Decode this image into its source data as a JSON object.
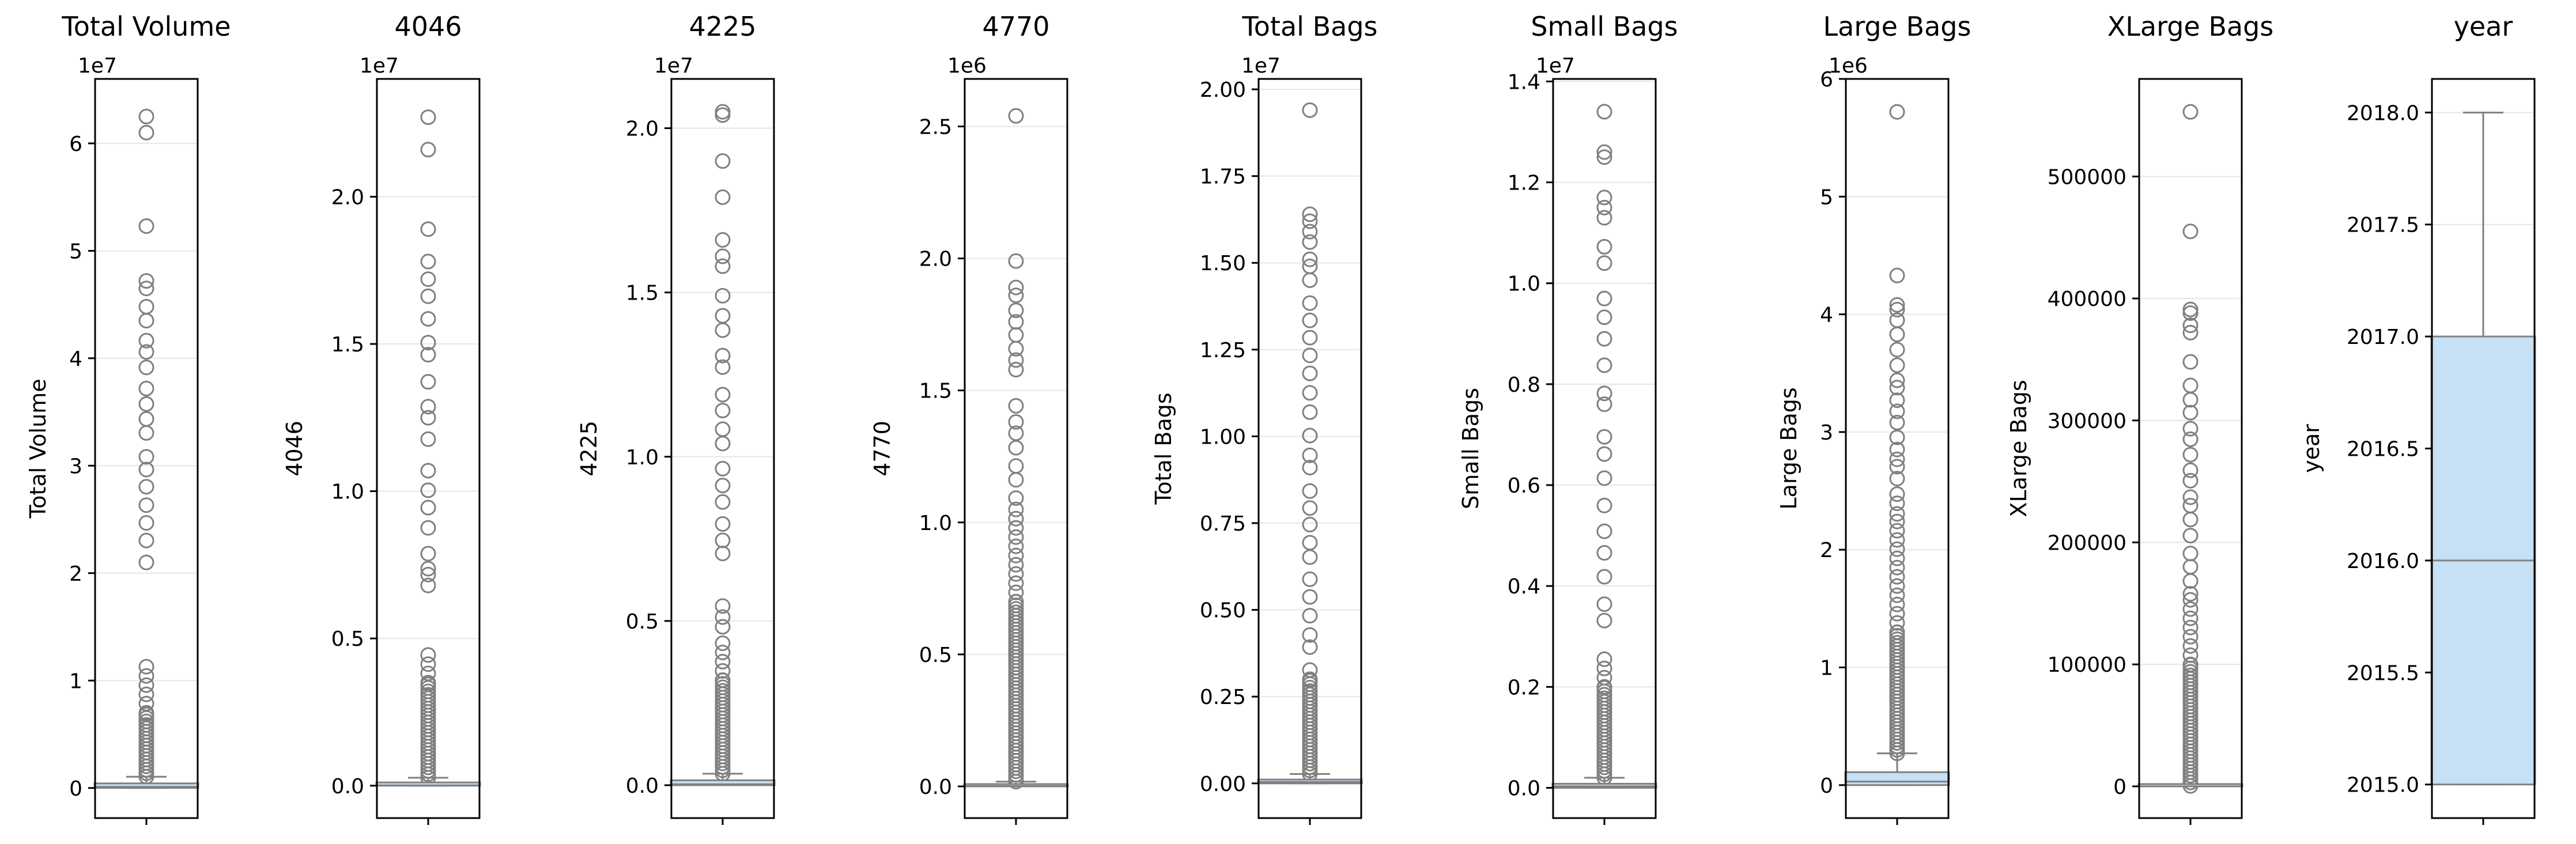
{
  "colors": {
    "box_fill": "#c6e0f5",
    "line": "#808080",
    "grid": "#e6e6e6",
    "frame": "#000000",
    "background": "#ffffff"
  },
  "chart_data": [
    {
      "type": "box",
      "title": "Total Volume",
      "ylabel": "Total Volume",
      "multiplier": "1e7",
      "ylim": [
        -0.28,
        6.6
      ],
      "yticks": [
        0,
        1,
        2,
        3,
        4,
        5,
        6
      ],
      "ytick_labels": [
        "0",
        "1",
        "2",
        "3",
        "4",
        "5",
        "6"
      ],
      "grid": true,
      "box": {
        "q1": 0.001,
        "median": 0.011,
        "q3": 0.043,
        "whisker_low": 0.0,
        "whisker_high": 0.105
      },
      "outliers_upper": {
        "min": 0.105,
        "max": 1.14,
        "dense_until": 0.7
      },
      "outlier_clusters": [
        [
          2.1,
          2.3,
          2
        ],
        [
          2.5,
          4.2,
          12
        ]
      ],
      "outliers_extra": [
        4.35,
        4.48,
        4.65,
        4.72,
        5.23,
        6.1,
        6.25
      ]
    },
    {
      "type": "box",
      "title": "4046",
      "ylabel": "4046",
      "multiplier": "1e7",
      "ylim": [
        -0.11,
        2.4
      ],
      "yticks": [
        0,
        0.5,
        1.0,
        1.5,
        2.0
      ],
      "ytick_labels": [
        "0.0",
        "0.5",
        "1.0",
        "1.5",
        "2.0"
      ],
      "grid": true,
      "box": {
        "q1": 0.0,
        "median": 0.001,
        "q3": 0.011,
        "whisker_low": 0.0,
        "whisker_high": 0.027
      },
      "outliers_upper": {
        "min": 0.027,
        "max": 0.47,
        "dense_until": 0.35
      },
      "outlier_clusters": [
        [
          0.68,
          0.72,
          2
        ],
        [
          0.73,
          1.66,
          14
        ]
      ],
      "outliers_extra": [
        1.72,
        1.78,
        1.89,
        2.16,
        2.27
      ]
    },
    {
      "type": "box",
      "title": "4225",
      "ylabel": "4225",
      "multiplier": "1e7",
      "ylim": [
        -0.1,
        2.15
      ],
      "yticks": [
        0,
        0.5,
        1.0,
        1.5,
        2.0
      ],
      "ytick_labels": [
        "0.0",
        "0.5",
        "1.0",
        "1.5",
        "2.0"
      ],
      "grid": true,
      "box": {
        "q1": 0.0,
        "median": 0.003,
        "q3": 0.015,
        "whisker_low": 0.0,
        "whisker_high": 0.035
      },
      "outliers_upper": {
        "min": 0.035,
        "max": 0.44,
        "dense_until": 0.32
      },
      "outlier_clusters": [
        [
          0.48,
          0.55,
          3
        ],
        [
          0.69,
          1.43,
          14
        ]
      ],
      "outliers_extra": [
        1.49,
        1.58,
        1.61,
        1.66,
        1.79,
        1.9,
        2.04,
        2.05
      ]
    },
    {
      "type": "box",
      "title": "4770",
      "ylabel": "4770",
      "multiplier": "1e6",
      "ylim": [
        -0.12,
        2.68
      ],
      "yticks": [
        0,
        0.5,
        1.0,
        1.5,
        2.0,
        2.5
      ],
      "ytick_labels": [
        "0.0",
        "0.5",
        "1.0",
        "1.5",
        "2.0",
        "2.5"
      ],
      "grid": true,
      "box": {
        "q1": 0.0,
        "median": 0.001,
        "q3": 0.007,
        "whisker_low": 0.0,
        "whisker_high": 0.018
      },
      "outliers_upper": {
        "min": 0.018,
        "max": 1.05,
        "dense_until": 0.7
      },
      "outlier_clusters": [
        [
          1.1,
          1.45,
          7
        ],
        [
          1.58,
          1.8,
          6
        ]
      ],
      "outliers_extra": [
        1.86,
        1.89,
        1.99,
        2.54
      ]
    },
    {
      "type": "box",
      "title": "Total Bags",
      "ylabel": "Total Bags",
      "multiplier": "1e7",
      "ylim": [
        -0.1,
        2.03
      ],
      "yticks": [
        0,
        0.25,
        0.5,
        0.75,
        1.0,
        1.25,
        1.5,
        1.75,
        2.0
      ],
      "ytick_labels": [
        "0.00",
        "0.25",
        "0.50",
        "0.75",
        "1.00",
        "1.25",
        "1.50",
        "1.75",
        "2.00"
      ],
      "grid": true,
      "box": {
        "q1": 0.0,
        "median": 0.004,
        "q3": 0.011,
        "whisker_low": 0.0,
        "whisker_high": 0.027
      },
      "outliers_upper": {
        "min": 0.027,
        "max": 0.35,
        "dense_until": 0.3
      },
      "outlier_clusters": [
        [
          0.38,
          0.8,
          9
        ],
        [
          0.85,
          1.38,
          11
        ]
      ],
      "outliers_extra": [
        1.45,
        1.49,
        1.51,
        1.56,
        1.59,
        1.62,
        1.64,
        1.94
      ]
    },
    {
      "type": "box",
      "title": "Small Bags",
      "ylabel": "Small Bags",
      "multiplier": "1e7",
      "ylim": [
        -0.06,
        1.405
      ],
      "yticks": [
        0,
        0.2,
        0.4,
        0.6,
        0.8,
        1.0,
        1.2,
        1.4
      ],
      "ytick_labels": [
        "0.0",
        "0.2",
        "0.4",
        "0.6",
        "0.8",
        "1.0",
        "1.2",
        "1.4"
      ],
      "grid": true,
      "box": {
        "q1": 0.0,
        "median": 0.003,
        "q3": 0.008,
        "whisker_low": 0.0,
        "whisker_high": 0.02
      },
      "outliers_upper": {
        "min": 0.02,
        "max": 0.27,
        "dense_until": 0.2
      },
      "outlier_clusters": [
        [
          0.33,
          1.12,
          18
        ]
      ],
      "outliers_extra": [
        1.15,
        1.17,
        1.25,
        1.26,
        1.34
      ]
    },
    {
      "type": "box",
      "title": "Large Bags",
      "ylabel": "Large Bags",
      "multiplier": "1e6",
      "ylim": [
        -0.28,
        6.0
      ],
      "yticks": [
        0,
        1,
        2,
        3,
        4,
        5,
        6
      ],
      "ytick_labels": [
        "0",
        "1",
        "2",
        "3",
        "4",
        "5",
        "6"
      ],
      "grid": true,
      "box": {
        "q1": 0.0,
        "median": 0.03,
        "q3": 0.11,
        "whisker_low": 0.0,
        "whisker_high": 0.27
      },
      "outliers_upper": {
        "min": 0.27,
        "max": 2.3,
        "dense_until": 1.3
      },
      "outlier_clusters": [
        [
          2.3,
          3.55,
          14
        ]
      ],
      "outliers_extra": [
        3.7,
        3.83,
        3.95,
        4.04,
        4.08,
        4.33,
        5.72
      ]
    },
    {
      "type": "box",
      "title": "XLarge Bags",
      "ylabel": "XLarge Bags",
      "multiplier": "",
      "ylim": [
        -26000,
        580000
      ],
      "yticks": [
        0,
        100000,
        200000,
        300000,
        400000,
        500000
      ],
      "ytick_labels": [
        "0",
        "100000",
        "200000",
        "300000",
        "400000",
        "500000"
      ],
      "grid": true,
      "box": {
        "q1": 0,
        "median": 0,
        "q3": 130,
        "whisker_low": 0,
        "whisker_high": 330
      },
      "outliers_upper": {
        "min": 330,
        "max": 160000,
        "dense_until": 100000
      },
      "outlier_clusters": [
        [
          160000,
          330000,
          16
        ]
      ],
      "outliers_extra": [
        348000,
        372000,
        378000,
        388000,
        391000,
        455000,
        553000
      ]
    },
    {
      "type": "box",
      "title": "year",
      "ylabel": "year",
      "multiplier": "",
      "ylim": [
        2014.85,
        2018.15
      ],
      "yticks": [
        2015.0,
        2015.5,
        2016.0,
        2016.5,
        2017.0,
        2017.5,
        2018.0
      ],
      "ytick_labels": [
        "2015.0",
        "2015.5",
        "2016.0",
        "2016.5",
        "2017.0",
        "2017.5",
        "2018.0"
      ],
      "grid": true,
      "box": {
        "q1": 2015.0,
        "median": 2016.0,
        "q3": 2017.0,
        "whisker_low": 2015.0,
        "whisker_high": 2018.0
      },
      "outliers_upper": null,
      "outlier_clusters": [],
      "outliers_extra": []
    }
  ]
}
